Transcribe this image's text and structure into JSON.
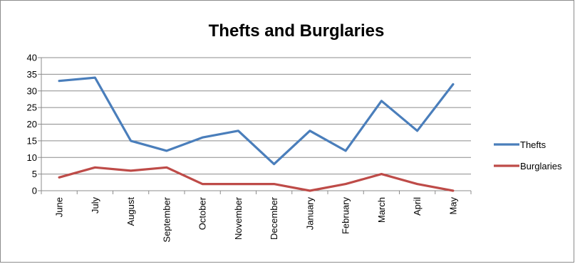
{
  "chart_data": {
    "type": "line",
    "title": "Thefts and Burglaries",
    "xlabel": "",
    "ylabel": "",
    "categories": [
      "June",
      "July",
      "August",
      "September",
      "October",
      "November",
      "December",
      "January",
      "February",
      "March",
      "April",
      "May"
    ],
    "series": [
      {
        "name": "Thefts",
        "values": [
          33,
          34,
          15,
          12,
          16,
          18,
          8,
          18,
          12,
          27,
          18,
          32
        ],
        "color": "#4a7ebb"
      },
      {
        "name": "Burglaries",
        "values": [
          4,
          7,
          6,
          7,
          2,
          2,
          2,
          0,
          2,
          5,
          2,
          0
        ],
        "color": "#be4b48"
      }
    ],
    "ylim": [
      0,
      40
    ],
    "yticks": [
      "0",
      "5",
      "10",
      "15",
      "20",
      "25",
      "30",
      "35",
      "40"
    ],
    "grid": true,
    "legend": "right"
  }
}
